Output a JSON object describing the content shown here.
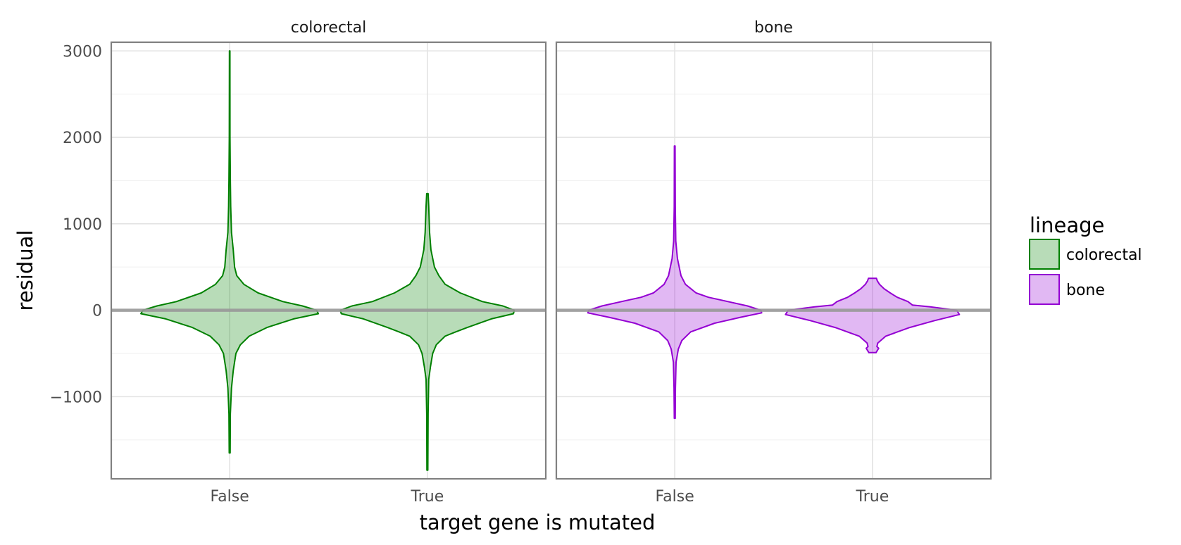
{
  "chart_data": {
    "type": "violin",
    "xlabel": "target gene is mutated",
    "ylabel": "residual",
    "ylim": [
      -1950,
      3100
    ],
    "yticks": [
      -1000,
      0,
      1000,
      2000,
      3000
    ],
    "ytick_labels": [
      "−1000",
      "0",
      "1000",
      "2000",
      "3000"
    ],
    "categories": [
      "False",
      "True"
    ],
    "zero_line": 0,
    "grid": true,
    "legend": {
      "title": "lineage",
      "placement": "right",
      "entries": [
        {
          "label": "colorectal",
          "color": "#008000"
        },
        {
          "label": "bone",
          "color": "#9400d3"
        }
      ]
    },
    "facets": [
      {
        "title": "colorectal",
        "color": "#008000",
        "violins": [
          {
            "category": "False",
            "min": -1650,
            "max": 3000,
            "profile": [
              [
                -1650,
                0.005
              ],
              [
                -1200,
                0.008
              ],
              [
                -900,
                0.02
              ],
              [
                -700,
                0.04
              ],
              [
                -500,
                0.07
              ],
              [
                -400,
                0.12
              ],
              [
                -300,
                0.22
              ],
              [
                -200,
                0.42
              ],
              [
                -100,
                0.72
              ],
              [
                -40,
                1.0
              ],
              [
                0,
                0.98
              ],
              [
                50,
                0.82
              ],
              [
                100,
                0.6
              ],
              [
                200,
                0.32
              ],
              [
                300,
                0.16
              ],
              [
                400,
                0.08
              ],
              [
                500,
                0.055
              ],
              [
                700,
                0.04
              ],
              [
                900,
                0.02
              ],
              [
                1200,
                0.012
              ],
              [
                1500,
                0.008
              ],
              [
                2000,
                0.004
              ],
              [
                3000,
                0.003
              ]
            ]
          },
          {
            "category": "True",
            "min": -1850,
            "max": 1350,
            "profile": [
              [
                -1850,
                0.005
              ],
              [
                -1200,
                0.008
              ],
              [
                -800,
                0.015
              ],
              [
                -650,
                0.035
              ],
              [
                -500,
                0.06
              ],
              [
                -400,
                0.1
              ],
              [
                -300,
                0.2
              ],
              [
                -250,
                0.32
              ],
              [
                -200,
                0.45
              ],
              [
                -100,
                0.72
              ],
              [
                -40,
                0.97
              ],
              [
                0,
                0.98
              ],
              [
                50,
                0.85
              ],
              [
                100,
                0.62
              ],
              [
                200,
                0.37
              ],
              [
                300,
                0.2
              ],
              [
                400,
                0.13
              ],
              [
                500,
                0.08
              ],
              [
                600,
                0.06
              ],
              [
                700,
                0.04
              ],
              [
                900,
                0.025
              ],
              [
                1200,
                0.015
              ],
              [
                1350,
                0.008
              ]
            ]
          }
        ]
      },
      {
        "title": "bone",
        "color": "#9400d3",
        "violins": [
          {
            "category": "False",
            "min": -1250,
            "max": 1900,
            "profile": [
              [
                -1250,
                0.005
              ],
              [
                -900,
                0.008
              ],
              [
                -600,
                0.015
              ],
              [
                -450,
                0.04
              ],
              [
                -350,
                0.08
              ],
              [
                -250,
                0.18
              ],
              [
                -150,
                0.45
              ],
              [
                -80,
                0.75
              ],
              [
                -30,
                0.98
              ],
              [
                0,
                0.97
              ],
              [
                50,
                0.82
              ],
              [
                100,
                0.6
              ],
              [
                150,
                0.38
              ],
              [
                200,
                0.24
              ],
              [
                300,
                0.12
              ],
              [
                400,
                0.07
              ],
              [
                600,
                0.03
              ],
              [
                800,
                0.012
              ],
              [
                1200,
                0.006
              ],
              [
                1900,
                0.004
              ]
            ]
          },
          {
            "category": "True",
            "min": -490,
            "max": 370,
            "profile": [
              [
                -490,
                0.04
              ],
              [
                -440,
                0.07
              ],
              [
                -420,
                0.05
              ],
              [
                -380,
                0.06
              ],
              [
                -300,
                0.15
              ],
              [
                -200,
                0.42
              ],
              [
                -120,
                0.7
              ],
              [
                -50,
                0.98
              ],
              [
                0,
                0.95
              ],
              [
                40,
                0.65
              ],
              [
                60,
                0.45
              ],
              [
                100,
                0.4
              ],
              [
                150,
                0.28
              ],
              [
                200,
                0.2
              ],
              [
                250,
                0.13
              ],
              [
                300,
                0.08
              ],
              [
                340,
                0.055
              ],
              [
                370,
                0.045
              ]
            ]
          }
        ]
      }
    ]
  }
}
